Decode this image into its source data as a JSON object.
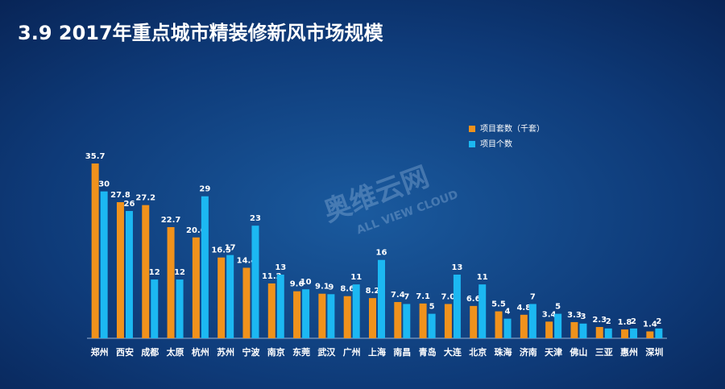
{
  "chart_data": {
    "type": "bar",
    "title": "3.9  2017年重点城市精装修新风市场规模",
    "watermark": [
      "奥维云网",
      "ALL VIEW CLOUD"
    ],
    "categories": [
      "郑州",
      "西安",
      "成都",
      "太原",
      "杭州",
      "苏州",
      "宁波",
      "南京",
      "东莞",
      "武汉",
      "广州",
      "上海",
      "南昌",
      "青岛",
      "大连",
      "北京",
      "珠海",
      "济南",
      "天津",
      "佛山",
      "三亚",
      "惠州",
      "深圳"
    ],
    "series": [
      {
        "name": "项目套数（千套）",
        "color": "#f0921c",
        "values": [
          35.7,
          27.8,
          27.2,
          22.7,
          20.6,
          16.5,
          14.4,
          11.2,
          9.6,
          9.1,
          8.6,
          8.2,
          7.4,
          7.1,
          7.0,
          6.6,
          5.5,
          4.8,
          3.4,
          3.3,
          2.3,
          1.8,
          1.4
        ],
        "value_labels": [
          "35.7",
          "27.8",
          "27.2",
          "22.7",
          "20.6",
          "16.5",
          "14.4",
          "11.2",
          "9.6",
          "9.1",
          "8.6",
          "8.2",
          "7.4",
          "7.1",
          "7.0",
          "6.6",
          "5.5",
          "4.8",
          "3.4",
          "3.3",
          "2.3",
          "1.8",
          "1.4"
        ]
      },
      {
        "name": "项目个数",
        "color": "#1cb8f2",
        "values": [
          30,
          26,
          12,
          12,
          29,
          17,
          23,
          13,
          10,
          9,
          11,
          16,
          7,
          5,
          13,
          11,
          4,
          7,
          5,
          3,
          2,
          2,
          2
        ]
      }
    ]
  }
}
